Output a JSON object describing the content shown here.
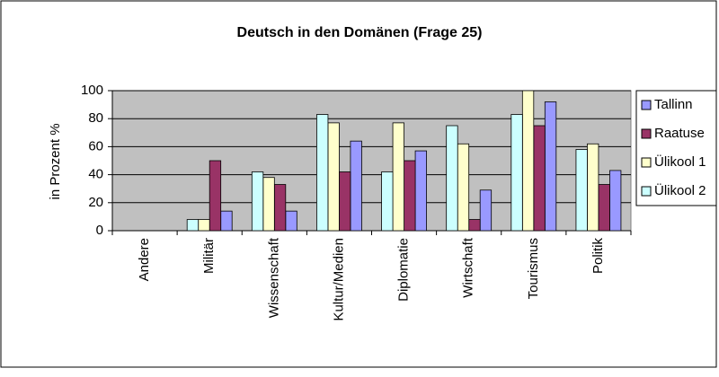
{
  "chart_data": {
    "type": "bar",
    "title": "Deutsch in den Domänen (Frage 25)",
    "y_label": "in Prozent %",
    "categories": [
      "Andere",
      "Militär",
      "Wissenschaft",
      "Kultur/Medien",
      "Diplomatie",
      "Wirtschaft",
      "Tourismus",
      "Politik"
    ],
    "series": [
      {
        "name": "Tallinn",
        "color": "#9999ff",
        "values": [
          0,
          14,
          14,
          64,
          57,
          29,
          92,
          43
        ]
      },
      {
        "name": "Raatuse",
        "color": "#993366",
        "values": [
          0,
          50,
          33,
          42,
          50,
          8,
          75,
          33
        ]
      },
      {
        "name": "Ülikool 1",
        "color": "#ffffcc",
        "values": [
          0,
          8,
          38,
          77,
          77,
          62,
          100,
          62
        ]
      },
      {
        "name": "Ülikool 2",
        "color": "#ccffff",
        "values": [
          0,
          8,
          42,
          83,
          42,
          75,
          83,
          58
        ]
      }
    ],
    "ylim": [
      0,
      100
    ],
    "yticks": [
      0,
      20,
      40,
      60,
      80,
      100
    ],
    "grid": true,
    "legend": "right"
  }
}
